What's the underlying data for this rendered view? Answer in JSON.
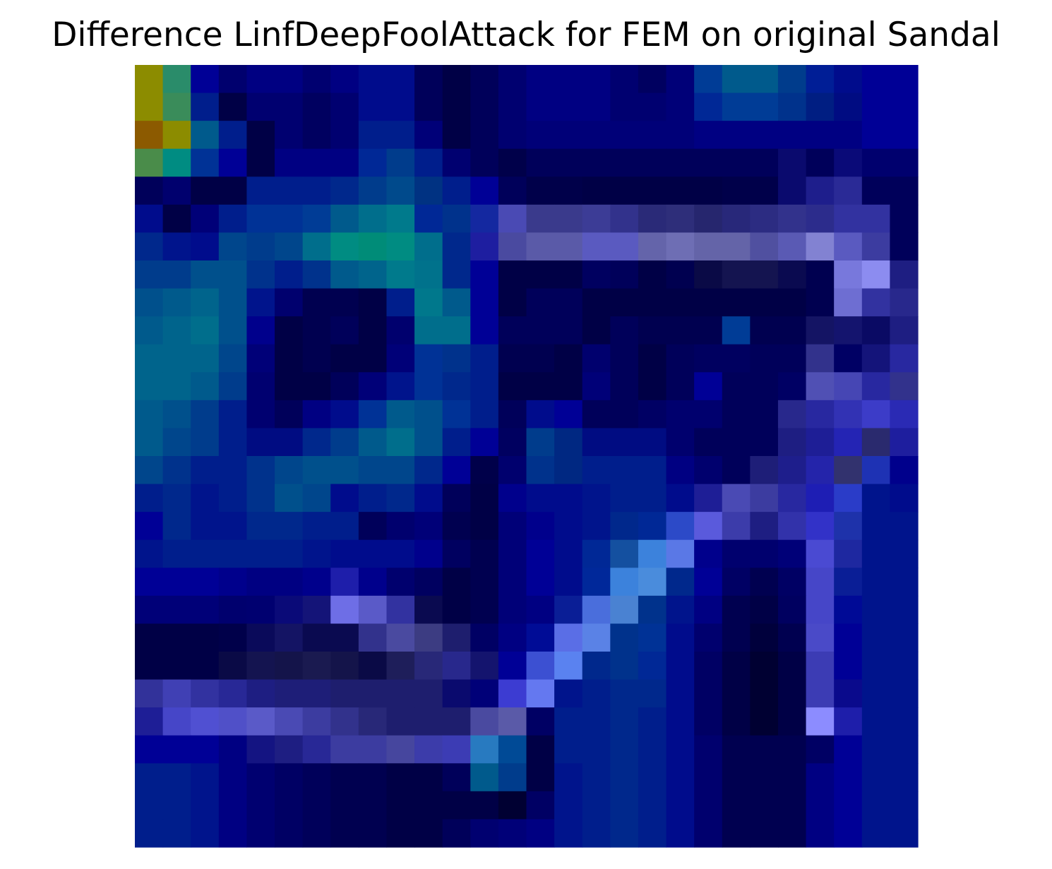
{
  "chart_data": {
    "type": "heatmap",
    "title": "Difference LinfDeepFoolAttack for FEM on original Sandal",
    "xlabel": "",
    "ylabel": "",
    "axes_visible": false,
    "grid": false,
    "legend": "none",
    "rows": 28,
    "cols": 28,
    "cells": [
      [
        "#8c8c00",
        "#2a8c6a",
        "#000096",
        "#00006e",
        "#000082",
        "#000082",
        "#000070",
        "#000082",
        "#000c8c",
        "#000c8c",
        "#00005a",
        "#000046",
        "#00005a",
        "#000070",
        "#000082",
        "#000082",
        "#000082",
        "#000070",
        "#000060",
        "#000078",
        "#003c96",
        "#005a8c",
        "#005a8c",
        "#003c8c",
        "#001e96",
        "#000c8c",
        "#000096",
        "#000096"
      ],
      [
        "#8c8c00",
        "#3a8c5a",
        "#001e8c",
        "#000046",
        "#000070",
        "#000070",
        "#000060",
        "#000070",
        "#000c8c",
        "#000c8c",
        "#00005a",
        "#000046",
        "#00005a",
        "#000070",
        "#000082",
        "#000082",
        "#000082",
        "#000070",
        "#000070",
        "#000078",
        "#002896",
        "#003c96",
        "#003c96",
        "#00328c",
        "#001e82",
        "#000c82",
        "#000096",
        "#000096"
      ],
      [
        "#8c5a00",
        "#8c8c00",
        "#005a8c",
        "#001e8c",
        "#000046",
        "#000070",
        "#000060",
        "#000070",
        "#001e8c",
        "#001e8c",
        "#000078",
        "#000046",
        "#00005a",
        "#000070",
        "#000078",
        "#000078",
        "#000078",
        "#000078",
        "#000078",
        "#000078",
        "#000082",
        "#000082",
        "#000082",
        "#000082",
        "#000082",
        "#000082",
        "#000096",
        "#000096"
      ],
      [
        "#4a8c4a",
        "#008c82",
        "#003296",
        "#000096",
        "#000046",
        "#000082",
        "#000082",
        "#000082",
        "#002896",
        "#003c8c",
        "#001e8c",
        "#000070",
        "#00005a",
        "#00004a",
        "#00005a",
        "#00005a",
        "#00005a",
        "#00005a",
        "#00005a",
        "#00005a",
        "#00005a",
        "#00005a",
        "#00005a",
        "#0a0a6e",
        "#00005a",
        "#0a0a78",
        "#00006e",
        "#00006e"
      ],
      [
        "#00005a",
        "#00006e",
        "#000046",
        "#000046",
        "#001e8c",
        "#001e8c",
        "#001e8c",
        "#00288c",
        "#003c8c",
        "#004a8c",
        "#003282",
        "#001e8c",
        "#000096",
        "#00005a",
        "#00004a",
        "#00004a",
        "#000046",
        "#000046",
        "#000046",
        "#000046",
        "#000046",
        "#00004a",
        "#00004a",
        "#0a0a6e",
        "#1e1e8c",
        "#2a2a96",
        "#00005a",
        "#00005a"
      ],
      [
        "#000c8c",
        "#000046",
        "#000078",
        "#001e8c",
        "#003296",
        "#003296",
        "#003c96",
        "#005a8c",
        "#006e8c",
        "#007a8c",
        "#002896",
        "#00328c",
        "#1428a0",
        "#4a4ab4",
        "#3a3a8c",
        "#3a3a8c",
        "#3c3c96",
        "#32328c",
        "#2a2a78",
        "#2e2e7a",
        "#26266e",
        "#28287a",
        "#2c2c82",
        "#32328c",
        "#2c2c8c",
        "#3232a0",
        "#3232a0",
        "#00005a"
      ],
      [
        "#00288c",
        "#00148c",
        "#000c8c",
        "#00468c",
        "#003c8c",
        "#00468c",
        "#006e8c",
        "#008c82",
        "#008c78",
        "#008c82",
        "#006e8c",
        "#00288c",
        "#1e1ea0",
        "#4a4aa0",
        "#5a5aa8",
        "#5a5aa8",
        "#5a5ac0",
        "#5a5ac0",
        "#6464aa",
        "#6e6eb4",
        "#6464a8",
        "#6464a8",
        "#5050a0",
        "#5a5ab4",
        "#8282d2",
        "#5a5ac0",
        "#3c3ca0",
        "#00005a"
      ],
      [
        "#003c8c",
        "#003c8c",
        "#00508c",
        "#00508c",
        "#00328c",
        "#001e8c",
        "#00328c",
        "#005a8c",
        "#00648c",
        "#007a8c",
        "#00728c",
        "#00288c",
        "#000096",
        "#000046",
        "#000046",
        "#000046",
        "#000060",
        "#00005a",
        "#000046",
        "#000050",
        "#0a0a46",
        "#141450",
        "#141450",
        "#0a0a50",
        "#000050",
        "#7878dc",
        "#8c8cf0",
        "#1e1e82"
      ],
      [
        "#00508c",
        "#005a8c",
        "#00648c",
        "#00508c",
        "#00148c",
        "#00006e",
        "#000050",
        "#000050",
        "#000046",
        "#001e8c",
        "#00788c",
        "#005a8c",
        "#000096",
        "#000046",
        "#00005a",
        "#00005a",
        "#000046",
        "#000046",
        "#000046",
        "#000046",
        "#000046",
        "#000046",
        "#000046",
        "#000046",
        "#000050",
        "#6e6ed2",
        "#3232a0",
        "#28288c"
      ],
      [
        "#005a8c",
        "#00648c",
        "#006e8c",
        "#00508c",
        "#00008c",
        "#000046",
        "#000050",
        "#00005a",
        "#000046",
        "#00006e",
        "#006e8c",
        "#006e8c",
        "#000096",
        "#00005a",
        "#00005a",
        "#00005a",
        "#000046",
        "#00005a",
        "#000050",
        "#000050",
        "#000050",
        "#003c96",
        "#000050",
        "#000050",
        "#141464",
        "#14146e",
        "#0a0a64",
        "#1e1e82"
      ],
      [
        "#00648c",
        "#00648c",
        "#00648c",
        "#00468c",
        "#000078",
        "#000046",
        "#000050",
        "#000046",
        "#000046",
        "#000078",
        "#003296",
        "#00328c",
        "#001e8c",
        "#000050",
        "#000050",
        "#000046",
        "#00006e",
        "#00005a",
        "#000046",
        "#00005a",
        "#000060",
        "#000060",
        "#00005a",
        "#00005a",
        "#32328c",
        "#000064",
        "#14147a",
        "#2828a0"
      ],
      [
        "#00648c",
        "#00648c",
        "#005a8c",
        "#003c8c",
        "#000070",
        "#000046",
        "#000046",
        "#00005a",
        "#000078",
        "#00148c",
        "#003296",
        "#00288c",
        "#001e8c",
        "#000046",
        "#000046",
        "#000046",
        "#000078",
        "#00005a",
        "#000046",
        "#00005a",
        "#000096",
        "#00005a",
        "#00005a",
        "#000064",
        "#5050b4",
        "#4646b4",
        "#2828a0",
        "#32328c"
      ],
      [
        "#005a8c",
        "#00508c",
        "#003c8c",
        "#001e8c",
        "#000070",
        "#00005a",
        "#000082",
        "#000c8c",
        "#003296",
        "#005a8c",
        "#00508c",
        "#003296",
        "#001e8c",
        "#00005a",
        "#000c8c",
        "#000096",
        "#00005a",
        "#00005a",
        "#000064",
        "#00006e",
        "#00006e",
        "#00005a",
        "#00005a",
        "#28288c",
        "#2828a0",
        "#3232b4",
        "#3c3cc8",
        "#2a2ab4"
      ],
      [
        "#005a8c",
        "#00468c",
        "#003c8c",
        "#001e8c",
        "#000c82",
        "#000c82",
        "#00288c",
        "#003c8c",
        "#005a8c",
        "#006e8c",
        "#00508c",
        "#001e8c",
        "#000096",
        "#000060",
        "#003c8c",
        "#002882",
        "#000c82",
        "#000c82",
        "#000c82",
        "#00006e",
        "#00005a",
        "#00005a",
        "#00005a",
        "#1e1e82",
        "#1e1e96",
        "#2424b4",
        "#2a2a6e",
        "#1e1e9e"
      ],
      [
        "#00468c",
        "#00328c",
        "#001e8c",
        "#001e8c",
        "#00328c",
        "#00468c",
        "#00508c",
        "#00508c",
        "#00468c",
        "#00468c",
        "#00288c",
        "#000096",
        "#00004a",
        "#00006e",
        "#00328c",
        "#002882",
        "#001e8c",
        "#001e8c",
        "#001e8c",
        "#000082",
        "#00006e",
        "#00005a",
        "#1e1e78",
        "#1e1e8c",
        "#2424aa",
        "#32326e",
        "#1e32b4",
        "#00008c"
      ],
      [
        "#001e8c",
        "#00288c",
        "#00148c",
        "#001e8c",
        "#00328c",
        "#00508c",
        "#00468c",
        "#000c8c",
        "#001e8c",
        "#00288c",
        "#000c8c",
        "#00005a",
        "#000046",
        "#00008c",
        "#000c8c",
        "#000c8c",
        "#00148c",
        "#001e8c",
        "#001e8c",
        "#000c8c",
        "#1e1e96",
        "#4a4ab4",
        "#3c3ca0",
        "#2828a0",
        "#1e1eb4",
        "#2a3cc8",
        "#00148c",
        "#000c8c"
      ],
      [
        "#000096",
        "#00288c",
        "#00148c",
        "#00148c",
        "#00288c",
        "#00288c",
        "#001e8c",
        "#001e8c",
        "#00005a",
        "#00006e",
        "#000078",
        "#000050",
        "#000046",
        "#000078",
        "#00008c",
        "#000c8c",
        "#00148c",
        "#00288c",
        "#002896",
        "#2c4ac8",
        "#5a5adc",
        "#3c3caa",
        "#1e1e82",
        "#3232aa",
        "#3232c8",
        "#1e32aa",
        "#00148c",
        "#00148c"
      ],
      [
        "#00148c",
        "#001e8c",
        "#001e8c",
        "#001e8c",
        "#001e8c",
        "#001e8c",
        "#00148c",
        "#000c8c",
        "#000c8c",
        "#000c8c",
        "#00008c",
        "#000060",
        "#000050",
        "#000078",
        "#000096",
        "#000c8c",
        "#002896",
        "#1450a0",
        "#3c82dc",
        "#5a78e6",
        "#00008c",
        "#00006e",
        "#00006e",
        "#000078",
        "#4a4ad2",
        "#1e28a0",
        "#00148c",
        "#00148c"
      ],
      [
        "#000096",
        "#000096",
        "#000096",
        "#00008c",
        "#000082",
        "#000082",
        "#00008c",
        "#1e1eaa",
        "#00008c",
        "#00006e",
        "#000060",
        "#000046",
        "#000050",
        "#000078",
        "#000096",
        "#000c8c",
        "#00289a",
        "#3c82dc",
        "#4a8cdc",
        "#00288c",
        "#000096",
        "#000064",
        "#000050",
        "#000064",
        "#4646c8",
        "#0a1e96",
        "#00148c",
        "#00148c"
      ],
      [
        "#000078",
        "#000078",
        "#000078",
        "#00006e",
        "#000070",
        "#0a0a78",
        "#141478",
        "#6e6ee6",
        "#5a5ac8",
        "#3232a0",
        "#0a0a50",
        "#000046",
        "#000050",
        "#000078",
        "#000082",
        "#0a1e96",
        "#4a6edc",
        "#4a82d2",
        "#00328c",
        "#00148c",
        "#000082",
        "#000050",
        "#000046",
        "#000060",
        "#4646c8",
        "#000a96",
        "#00148c",
        "#00148c"
      ],
      [
        "#000046",
        "#000046",
        "#000046",
        "#00004a",
        "#0a0a5a",
        "#141464",
        "#0a0a50",
        "#0a0a50",
        "#32328c",
        "#4a4aa0",
        "#3c3c82",
        "#1e1e6e",
        "#000064",
        "#000082",
        "#000c96",
        "#5a6ee6",
        "#5a82e6",
        "#00328c",
        "#003296",
        "#000c8c",
        "#00006e",
        "#000050",
        "#00003c",
        "#000050",
        "#4a4ac8",
        "#000096",
        "#00148c",
        "#00148c"
      ],
      [
        "#000046",
        "#000046",
        "#000046",
        "#0a0a46",
        "#141450",
        "#14144a",
        "#1a1a50",
        "#14144a",
        "#0a0a46",
        "#1e1e5a",
        "#282878",
        "#28288c",
        "#14146e",
        "#000096",
        "#3c50d2",
        "#5a82f0",
        "#00288c",
        "#00328c",
        "#002896",
        "#000c8c",
        "#000064",
        "#000046",
        "#000032",
        "#000046",
        "#3c3cb4",
        "#000096",
        "#00148c",
        "#00148c"
      ],
      [
        "#32329a",
        "#4040b4",
        "#3232a0",
        "#282896",
        "#1e1e82",
        "#1e1e78",
        "#1e1e78",
        "#1e1e6e",
        "#1e1e6e",
        "#1e1e6e",
        "#1e1e6e",
        "#0a0a6e",
        "#000078",
        "#3c3cd2",
        "#6478f0",
        "#00148c",
        "#001e8c",
        "#00288c",
        "#00288c",
        "#000c8c",
        "#000064",
        "#000046",
        "#000032",
        "#000046",
        "#3c3cb4",
        "#0a0a8c",
        "#00148c",
        "#00148c"
      ],
      [
        "#1e1e96",
        "#4646c8",
        "#5050d2",
        "#5050c8",
        "#5a5ac8",
        "#4a4ab4",
        "#3c3ca0",
        "#32328c",
        "#282878",
        "#1e1e6e",
        "#1e1e6e",
        "#1e1e6e",
        "#4a4aa0",
        "#5a5aa8",
        "#000064",
        "#001e8c",
        "#001e8c",
        "#00288c",
        "#001e8c",
        "#000c8c",
        "#000064",
        "#000046",
        "#000032",
        "#000046",
        "#8c8cff",
        "#1e1eaa",
        "#00148c",
        "#00148c"
      ],
      [
        "#000096",
        "#000096",
        "#000096",
        "#000082",
        "#141482",
        "#1e1e82",
        "#282896",
        "#3c3ca0",
        "#3c3ca0",
        "#46469e",
        "#3c3caa",
        "#3c3cb4",
        "#287ac0",
        "#004a96",
        "#000046",
        "#001e8c",
        "#001e8c",
        "#00288c",
        "#001e8c",
        "#000c8c",
        "#00006e",
        "#000050",
        "#000050",
        "#000050",
        "#000064",
        "#000096",
        "#00148c",
        "#00148c"
      ],
      [
        "#001e8c",
        "#001e8c",
        "#00148c",
        "#000082",
        "#000070",
        "#000064",
        "#00005a",
        "#000050",
        "#000050",
        "#000046",
        "#000046",
        "#00005a",
        "#005a8c",
        "#003c8c",
        "#000046",
        "#00148c",
        "#001e8c",
        "#00288c",
        "#001e8c",
        "#000c8c",
        "#00006e",
        "#000050",
        "#000050",
        "#000050",
        "#000082",
        "#000096",
        "#00148c",
        "#00148c"
      ],
      [
        "#001e8c",
        "#001e8c",
        "#00148c",
        "#000082",
        "#000070",
        "#000064",
        "#00005a",
        "#000050",
        "#000050",
        "#000046",
        "#000046",
        "#000046",
        "#000046",
        "#000032",
        "#000064",
        "#00148c",
        "#001e8c",
        "#00288c",
        "#001e8c",
        "#000c8c",
        "#00006e",
        "#000050",
        "#000050",
        "#000050",
        "#000082",
        "#000096",
        "#00148c",
        "#00148c"
      ],
      [
        "#001e8c",
        "#001e8c",
        "#00148c",
        "#000082",
        "#000070",
        "#000064",
        "#00005a",
        "#000050",
        "#000050",
        "#000046",
        "#000046",
        "#00005a",
        "#000070",
        "#000078",
        "#000082",
        "#00148c",
        "#001e8c",
        "#00288c",
        "#001e8c",
        "#000c8c",
        "#00006e",
        "#000050",
        "#000050",
        "#000050",
        "#000082",
        "#000096",
        "#00148c",
        "#00148c"
      ]
    ]
  }
}
